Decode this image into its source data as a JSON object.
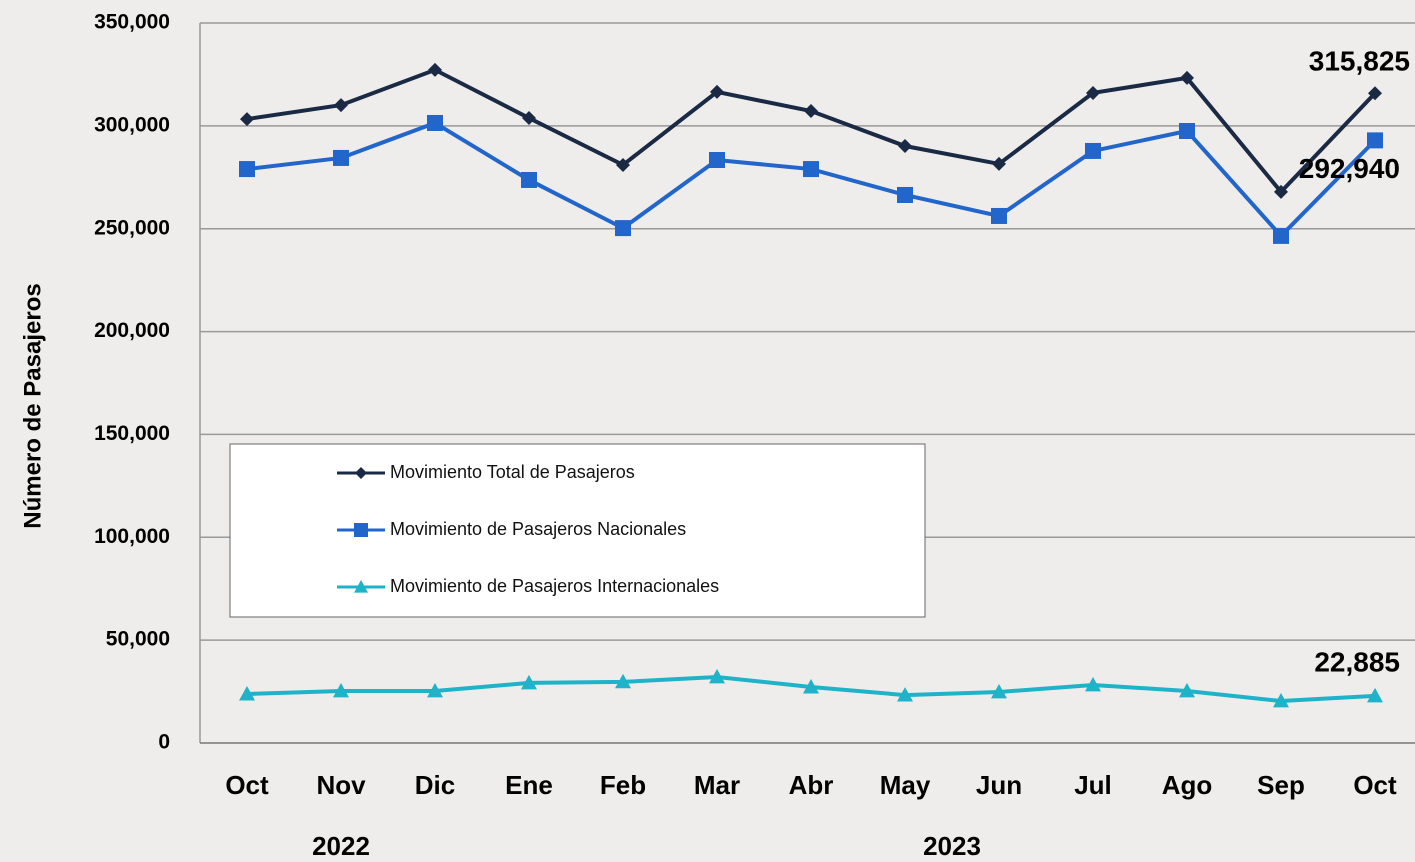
{
  "chart_data": {
    "type": "line",
    "y_label": "Número de Pasajeros",
    "categories": [
      "Oct",
      "Nov",
      "Dic",
      "Ene",
      "Feb",
      "Mar",
      "Abr",
      "May",
      "Jun",
      "Jul",
      "Ago",
      "Sep",
      "Oct"
    ],
    "year_labels": [
      "2022",
      "2023"
    ],
    "ylim": [
      0,
      350000
    ],
    "yticks": [
      0,
      {
        "value": 50000,
        "label": "50,000"
      },
      {
        "value": 100000,
        "label": "100,000"
      },
      {
        "value": 150000,
        "label": "150,000"
      },
      {
        "value": 200000,
        "label": "200,000"
      },
      {
        "value": 250000,
        "label": "250,000"
      },
      {
        "value": 300000,
        "label": "300,000"
      },
      {
        "value": 350000,
        "label": "350,000"
      }
    ],
    "grid": true,
    "legend": "lower-left",
    "series": [
      {
        "name": "Movimiento Total de Pasajeros",
        "color": "#1b2a44",
        "marker": "diamond",
        "values": [
          303300,
          310100,
          327200,
          303800,
          281000,
          316500,
          307200,
          290200,
          281500,
          316000,
          323300,
          267900,
          315825
        ],
        "value_labels": [
          null,
          null,
          null,
          null,
          null,
          null,
          null,
          null,
          null,
          null,
          null,
          null,
          "315,825"
        ]
      },
      {
        "name": "Movimiento de Pasajeros Nacionales",
        "color": "#2266cc",
        "marker": "square",
        "values": [
          279000,
          284400,
          301400,
          273700,
          250300,
          283400,
          279000,
          266400,
          256200,
          287800,
          297500,
          246500,
          292940
        ],
        "value_labels": [
          null,
          null,
          null,
          null,
          null,
          null,
          null,
          null,
          null,
          null,
          null,
          null,
          "292,940"
        ]
      },
      {
        "name": "Movimiento de Pasajeros Internacionales",
        "color": "#1eb3c8",
        "marker": "triangle",
        "values": [
          23800,
          25300,
          25300,
          29200,
          29700,
          32100,
          27200,
          23300,
          24800,
          28200,
          25300,
          20400,
          22885
        ],
        "value_labels": [
          null,
          null,
          null,
          null,
          null,
          null,
          null,
          null,
          null,
          null,
          null,
          null,
          "22,885"
        ]
      }
    ]
  }
}
